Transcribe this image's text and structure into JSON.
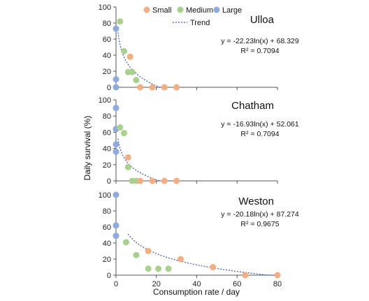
{
  "colors": {
    "small": "#F4AE84",
    "medium": "#A9D18E",
    "large": "#8FAADC",
    "trend": "#3A57A8",
    "axis": "#555555"
  },
  "chart_data": {
    "type": "scatter",
    "xlabel": "Consumption rate / day",
    "ylabel": "Daily survival (%)",
    "xlim": [
      0,
      80
    ],
    "ylim": [
      0,
      100
    ],
    "xticks": [
      0,
      20,
      40,
      60,
      80
    ],
    "yticks": [
      0,
      20,
      40,
      60,
      80,
      100
    ],
    "legend": {
      "placement": "top",
      "items": [
        {
          "key": "small",
          "label": "Small"
        },
        {
          "key": "medium",
          "label": "Medium"
        },
        {
          "key": "large",
          "label": "Large"
        },
        {
          "key": "trend",
          "label": "Trend"
        }
      ]
    },
    "panels": [
      {
        "title": "Ulloa",
        "equation": "y = -22.23ln(x) + 68.329",
        "r2": "R² = 0.7094",
        "trend": {
          "a": -22.23,
          "b": 68.329,
          "xmin": 1,
          "xmax": 22
        },
        "points": {
          "small": [
            [
              7,
              38
            ],
            [
              12,
              0
            ],
            [
              18,
              0
            ],
            [
              24,
              0
            ],
            [
              30,
              0
            ]
          ],
          "medium": [
            [
              2,
              82
            ],
            [
              4,
              45
            ],
            [
              6,
              19
            ],
            [
              8,
              19
            ],
            [
              10,
              9
            ]
          ],
          "large": [
            [
              0,
              73
            ],
            [
              0,
              10
            ],
            [
              0,
              0
            ]
          ]
        }
      },
      {
        "title": "Chatham",
        "equation": "y = -16.93ln(x) + 52.061",
        "r2": "R² = 0.7094",
        "trend": {
          "a": -16.93,
          "b": 52.061,
          "xmin": 1,
          "xmax": 22
        },
        "points": {
          "small": [
            [
              6,
              29
            ],
            [
              12,
              0
            ],
            [
              18,
              0
            ],
            [
              24,
              0
            ],
            [
              30,
              0
            ]
          ],
          "medium": [
            [
              2,
              66
            ],
            [
              4,
              59
            ],
            [
              6,
              17
            ],
            [
              8,
              0
            ],
            [
              10,
              0
            ]
          ],
          "large": [
            [
              0,
              90
            ],
            [
              0,
              64
            ],
            [
              0,
              45
            ],
            [
              0,
              36
            ]
          ]
        }
      },
      {
        "title": "Weston",
        "equation": "y = -20.18ln(x) + 87.274",
        "r2": "R² = 0.9675",
        "trend": {
          "a": -20.18,
          "b": 87.274,
          "xmin": 6,
          "xmax": 80
        },
        "points": {
          "small": [
            [
              16,
              30
            ],
            [
              32,
              20
            ],
            [
              48,
              10
            ],
            [
              64,
              0
            ],
            [
              80,
              0
            ]
          ],
          "medium": [
            [
              5,
              41
            ],
            [
              10,
              25
            ],
            [
              16,
              8
            ],
            [
              21,
              8
            ],
            [
              26,
              8
            ]
          ],
          "large": [
            [
              0,
              100
            ],
            [
              0,
              62
            ],
            [
              0,
              49
            ]
          ]
        }
      }
    ]
  }
}
